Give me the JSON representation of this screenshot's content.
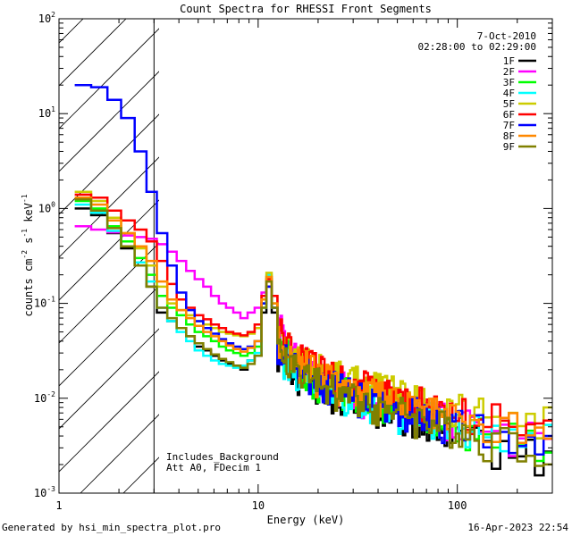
{
  "chart_data": {
    "type": "line",
    "title": "Count Spectra for RHESSI Front Segments",
    "xlabel": "Energy (keV)",
    "ylabel_parts": {
      "base": "counts cm",
      "exp1": "-2",
      "mid1": " s",
      "exp2": "-1",
      "mid2": " keV",
      "exp3": "-1"
    },
    "x_scale": "log",
    "y_scale": "log",
    "xlim": [
      1,
      300
    ],
    "ylim": [
      0.001,
      100
    ],
    "x_ticks": [
      {
        "value": 1,
        "label": "1"
      },
      {
        "value": 10,
        "label": "10"
      },
      {
        "value": 100,
        "label": "100"
      }
    ],
    "y_ticks": [
      {
        "value": 0.001,
        "base": "10",
        "exp": "-3"
      },
      {
        "value": 0.01,
        "base": "10",
        "exp": "-2"
      },
      {
        "value": 0.1,
        "base": "10",
        "exp": "-1"
      },
      {
        "value": 1,
        "base": "10",
        "exp": "0"
      },
      {
        "value": 10,
        "base": "10",
        "exp": "1"
      },
      {
        "value": 100,
        "base": "10",
        "exp": "2"
      }
    ],
    "attenuator_cutoff_kev": 3,
    "date": "7-Oct-2010",
    "time_range": "02:28:00 to 02:29:00",
    "annotations": [
      "Includes_Background",
      "Att A0, FDecim 1"
    ],
    "legend_position": "top-right",
    "series": [
      {
        "name": "1F",
        "color": "#000000",
        "values": [
          1.0,
          0.85,
          0.55,
          0.38,
          0.25,
          0.15,
          0.08,
          0.065,
          0.055,
          0.045,
          0.035,
          0.032,
          0.028,
          0.025,
          0.023,
          0.022,
          0.02,
          0.025,
          0.028,
          0.08,
          0.15,
          0.08,
          0.03,
          0.025,
          0.02,
          0.018,
          0.016,
          0.014,
          0.013,
          0.012,
          0.01,
          0.01,
          0.009,
          0.009,
          0.008,
          0.008,
          0.007,
          0.007,
          0.006,
          0.006,
          0.006,
          0.005,
          0.005,
          0.004,
          0.004,
          0.0035,
          0.003,
          0.0025
        ]
      },
      {
        "name": "2F",
        "color": "#ff00ff",
        "values": [
          0.65,
          0.6,
          0.56,
          0.52,
          0.5,
          0.48,
          0.42,
          0.35,
          0.28,
          0.22,
          0.18,
          0.15,
          0.12,
          0.1,
          0.09,
          0.08,
          0.07,
          0.08,
          0.09,
          0.13,
          0.17,
          0.12,
          0.05,
          0.035,
          0.028,
          0.024,
          0.02,
          0.018,
          0.016,
          0.015,
          0.014,
          0.013,
          0.012,
          0.011,
          0.01,
          0.01,
          0.009,
          0.009,
          0.008,
          0.008,
          0.007,
          0.007,
          0.006,
          0.006,
          0.005,
          0.005,
          0.004,
          0.004
        ]
      },
      {
        "name": "3F",
        "color": "#00ff00",
        "values": [
          1.2,
          1.0,
          0.65,
          0.45,
          0.3,
          0.2,
          0.12,
          0.09,
          0.075,
          0.06,
          0.05,
          0.045,
          0.04,
          0.035,
          0.032,
          0.03,
          0.028,
          0.03,
          0.035,
          0.1,
          0.19,
          0.1,
          0.035,
          0.028,
          0.022,
          0.02,
          0.018,
          0.016,
          0.015,
          0.014,
          0.013,
          0.012,
          0.011,
          0.01,
          0.01,
          0.009,
          0.009,
          0.008,
          0.008,
          0.007,
          0.007,
          0.006,
          0.006,
          0.005,
          0.005,
          0.0045,
          0.004,
          0.0035
        ]
      },
      {
        "name": "4F",
        "color": "#00ffff",
        "values": [
          1.1,
          0.9,
          0.58,
          0.4,
          0.27,
          0.17,
          0.09,
          0.065,
          0.05,
          0.04,
          0.032,
          0.028,
          0.025,
          0.023,
          0.022,
          0.021,
          0.022,
          0.025,
          0.03,
          0.09,
          0.2,
          0.09,
          0.03,
          0.024,
          0.02,
          0.018,
          0.016,
          0.015,
          0.014,
          0.013,
          0.012,
          0.011,
          0.01,
          0.01,
          0.009,
          0.009,
          0.008,
          0.008,
          0.007,
          0.007,
          0.006,
          0.006,
          0.006,
          0.005,
          0.005,
          0.0045,
          0.004,
          0.0035
        ]
      },
      {
        "name": "5F",
        "color": "#cccc00",
        "values": [
          1.5,
          1.2,
          0.8,
          0.55,
          0.38,
          0.25,
          0.15,
          0.1,
          0.085,
          0.075,
          0.065,
          0.06,
          0.055,
          0.05,
          0.048,
          0.046,
          0.045,
          0.048,
          0.055,
          0.12,
          0.21,
          0.12,
          0.045,
          0.035,
          0.03,
          0.026,
          0.024,
          0.022,
          0.02,
          0.019,
          0.018,
          0.017,
          0.016,
          0.015,
          0.014,
          0.013,
          0.012,
          0.012,
          0.011,
          0.01,
          0.01,
          0.009,
          0.009,
          0.008,
          0.008,
          0.007,
          0.007,
          0.006
        ]
      },
      {
        "name": "6F",
        "color": "#ff0000",
        "values": [
          1.4,
          1.3,
          0.95,
          0.75,
          0.6,
          0.45,
          0.28,
          0.16,
          0.11,
          0.09,
          0.075,
          0.068,
          0.06,
          0.055,
          0.05,
          0.048,
          0.046,
          0.05,
          0.06,
          0.12,
          0.18,
          0.12,
          0.05,
          0.04,
          0.032,
          0.028,
          0.025,
          0.022,
          0.02,
          0.019,
          0.017,
          0.016,
          0.015,
          0.014,
          0.013,
          0.012,
          0.011,
          0.011,
          0.01,
          0.009,
          0.009,
          0.008,
          0.008,
          0.007,
          0.007,
          0.006,
          0.006,
          0.005
        ]
      },
      {
        "name": "7F",
        "color": "#0000ff",
        "values": [
          20,
          19,
          14,
          9,
          4,
          1.5,
          0.55,
          0.25,
          0.13,
          0.085,
          0.065,
          0.055,
          0.048,
          0.042,
          0.038,
          0.035,
          0.033,
          0.035,
          0.04,
          0.1,
          0.15,
          0.09,
          0.035,
          0.028,
          0.024,
          0.021,
          0.019,
          0.017,
          0.015,
          0.014,
          0.013,
          0.012,
          0.011,
          0.01,
          0.01,
          0.009,
          0.009,
          0.008,
          0.008,
          0.007,
          0.007,
          0.006,
          0.006,
          0.005,
          0.005,
          0.0045,
          0.004,
          0.004
        ]
      },
      {
        "name": "8F",
        "color": "#ff8800",
        "values": [
          1.3,
          1.1,
          0.75,
          0.55,
          0.4,
          0.28,
          0.17,
          0.11,
          0.085,
          0.07,
          0.058,
          0.05,
          0.045,
          0.04,
          0.036,
          0.033,
          0.031,
          0.034,
          0.04,
          0.11,
          0.19,
          0.1,
          0.04,
          0.032,
          0.026,
          0.023,
          0.021,
          0.019,
          0.017,
          0.016,
          0.015,
          0.014,
          0.013,
          0.012,
          0.011,
          0.011,
          0.01,
          0.009,
          0.009,
          0.008,
          0.008,
          0.007,
          0.007,
          0.006,
          0.006,
          0.005,
          0.005,
          0.0045
        ]
      },
      {
        "name": "9F",
        "color": "#808000",
        "values": [
          1.25,
          0.95,
          0.62,
          0.4,
          0.25,
          0.15,
          0.09,
          0.07,
          0.055,
          0.045,
          0.038,
          0.033,
          0.029,
          0.026,
          0.024,
          0.022,
          0.021,
          0.023,
          0.028,
          0.09,
          0.17,
          0.09,
          0.03,
          0.025,
          0.021,
          0.019,
          0.017,
          0.015,
          0.014,
          0.013,
          0.012,
          0.011,
          0.01,
          0.01,
          0.009,
          0.009,
          0.008,
          0.008,
          0.007,
          0.007,
          0.006,
          0.006,
          0.005,
          0.005,
          0.0045,
          0.004,
          0.0035,
          0.003
        ]
      }
    ],
    "energy_bins_kev": [
      1.2,
      1.45,
      1.75,
      2.05,
      2.4,
      2.75,
      3.1,
      3.5,
      3.9,
      4.35,
      4.8,
      5.3,
      5.8,
      6.35,
      6.9,
      7.5,
      8.15,
      8.85,
      9.6,
      10.4,
      11.0,
      11.7,
      12.5,
      13.4,
      14.4,
      15.5,
      16.7,
      18.0,
      19.5,
      21.1,
      22.9,
      24.9,
      27.1,
      29.6,
      32.4,
      35.6,
      39.2,
      43.3,
      48.0,
      53.3,
      59.4,
      66.4,
      74.4,
      83.7,
      94.5,
      110,
      135,
      200
    ]
  },
  "footer": {
    "left": "Generated by hsi_min_spectra_plot.pro",
    "right": "16-Apr-2023 22:54"
  }
}
